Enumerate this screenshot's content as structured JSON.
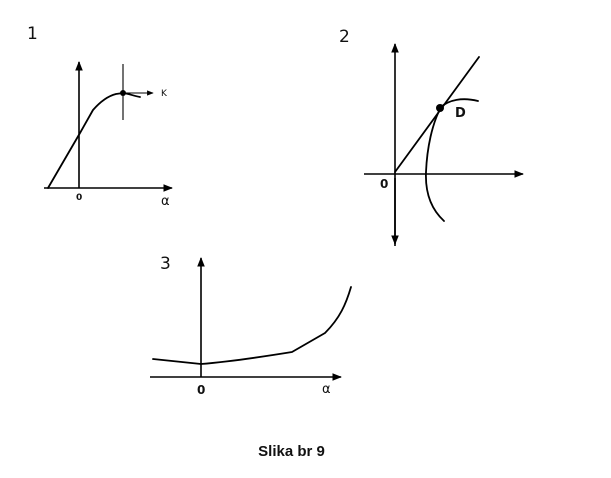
{
  "caption": "Slika br 9",
  "panels": [
    {
      "number": "1",
      "origin_label": "0",
      "x_axis_label": "α",
      "marker_label": "K"
    },
    {
      "number": "2",
      "origin_label": "0",
      "point_label": "D"
    },
    {
      "number": "3",
      "origin_label": "0",
      "x_axis_label": "α"
    }
  ]
}
